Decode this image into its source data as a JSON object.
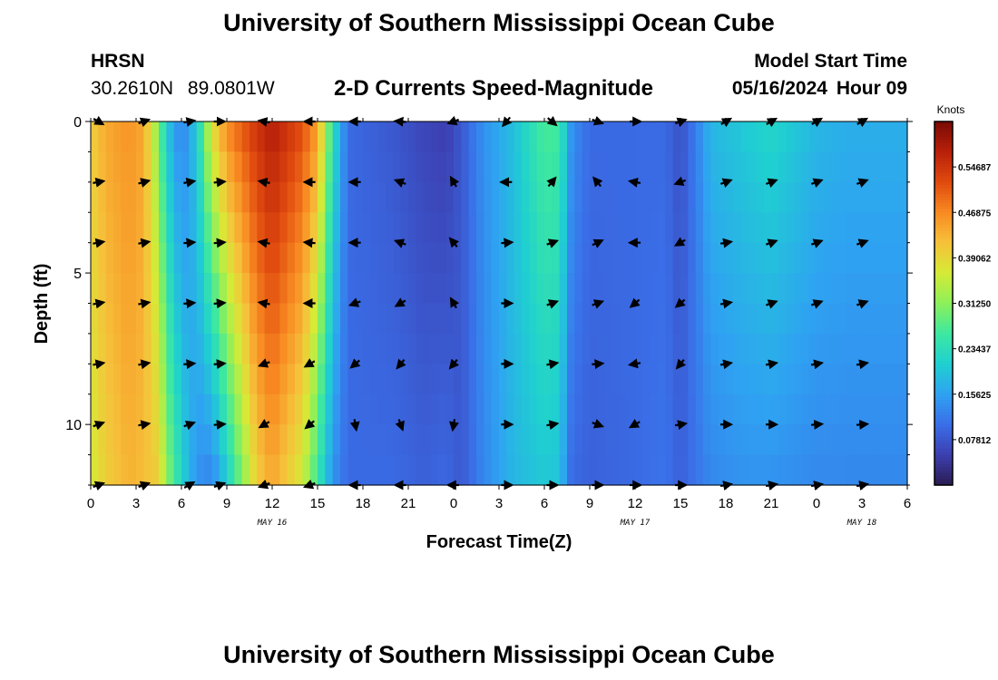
{
  "header": {
    "title": "University of Southern Mississippi Ocean Cube",
    "station": "HRSN",
    "lat": "30.2610N",
    "lon": "89.0801W",
    "subtitle": "2-D Currents Speed-Magnitude",
    "model_start_label": "Model Start Time",
    "model_start_date": "05/16/2024",
    "model_start_hour": "Hour 09"
  },
  "footer": {
    "title": "University of Southern Mississippi Ocean Cube"
  },
  "chart_data": {
    "type": "heatmap",
    "title": "2-D Currents Speed-Magnitude",
    "xlabel": "Forecast Time(Z)",
    "ylabel": "Depth (ft)",
    "xlim": [
      0,
      54
    ],
    "ylim": [
      0,
      12
    ],
    "x_tick_labels": [
      "0",
      "3",
      "6",
      "9",
      "12",
      "15",
      "18",
      "21",
      "0",
      "3",
      "6",
      "9",
      "12",
      "15",
      "18",
      "21",
      "0",
      "3",
      "6"
    ],
    "y_ticks": [
      0,
      5,
      10
    ],
    "day_labels": [
      {
        "label": "MAY 16",
        "hour": 12
      },
      {
        "label": "MAY 17",
        "hour": 36
      },
      {
        "label": "MAY 18",
        "hour": 51
      }
    ],
    "colorbar": {
      "label": "Knots",
      "min": 0.0,
      "max": 0.625,
      "ticks": [
        0.07812,
        0.15625,
        0.23437,
        0.3125,
        0.39062,
        0.46875,
        0.54687
      ],
      "tick_labels": [
        "0.07812",
        "0.15625",
        "0.23437",
        "0.31250",
        "0.39062",
        "0.46875",
        "0.54687"
      ],
      "colors": [
        "#2b1c52",
        "#3c3fb0",
        "#3a6ee8",
        "#2fa2f2",
        "#1fd0d0",
        "#3de8a0",
        "#8df05a",
        "#d6ea36",
        "#f6c13a",
        "#f88a22",
        "#e04a0e",
        "#b8200a",
        "#780a04"
      ]
    },
    "depths": [
      0,
      1,
      2,
      3,
      4,
      5,
      6,
      7,
      8,
      9,
      10,
      11,
      12
    ],
    "speed_profile": [
      {
        "hour": 0,
        "surface": 0.4,
        "bottom": 0.36
      },
      {
        "hour": 1,
        "surface": 0.44,
        "bottom": 0.4
      },
      {
        "hour": 2.5,
        "surface": 0.46,
        "bottom": 0.43
      },
      {
        "hour": 3.5,
        "surface": 0.44,
        "bottom": 0.42
      },
      {
        "hour": 4.5,
        "surface": 0.3,
        "bottom": 0.4
      },
      {
        "hour": 5,
        "surface": 0.2,
        "bottom": 0.32
      },
      {
        "hour": 6,
        "surface": 0.12,
        "bottom": 0.22
      },
      {
        "hour": 7,
        "surface": 0.2,
        "bottom": 0.14
      },
      {
        "hour": 8,
        "surface": 0.38,
        "bottom": 0.12
      },
      {
        "hour": 9,
        "surface": 0.47,
        "bottom": 0.2
      },
      {
        "hour": 11,
        "surface": 0.55,
        "bottom": 0.4
      },
      {
        "hour": 12,
        "surface": 0.58,
        "bottom": 0.44
      },
      {
        "hour": 14,
        "surface": 0.52,
        "bottom": 0.36
      },
      {
        "hour": 15,
        "surface": 0.45,
        "bottom": 0.25
      },
      {
        "hour": 16,
        "surface": 0.24,
        "bottom": 0.14
      },
      {
        "hour": 17,
        "surface": 0.1,
        "bottom": 0.1
      },
      {
        "hour": 20,
        "surface": 0.08,
        "bottom": 0.1
      },
      {
        "hour": 22,
        "surface": 0.06,
        "bottom": 0.09
      },
      {
        "hour": 23.5,
        "surface": 0.05,
        "bottom": 0.1
      },
      {
        "hour": 24.5,
        "surface": 0.08,
        "bottom": 0.08
      },
      {
        "hour": 26,
        "surface": 0.14,
        "bottom": 0.13
      },
      {
        "hour": 28,
        "surface": 0.19,
        "bottom": 0.18
      },
      {
        "hour": 30,
        "surface": 0.27,
        "bottom": 0.2
      },
      {
        "hour": 31,
        "surface": 0.26,
        "bottom": 0.19
      },
      {
        "hour": 31.8,
        "surface": 0.14,
        "bottom": 0.1
      },
      {
        "hour": 33,
        "surface": 0.1,
        "bottom": 0.09
      },
      {
        "hour": 36,
        "surface": 0.1,
        "bottom": 0.1
      },
      {
        "hour": 38,
        "surface": 0.1,
        "bottom": 0.11
      },
      {
        "hour": 39,
        "surface": 0.07,
        "bottom": 0.09
      },
      {
        "hour": 40,
        "surface": 0.12,
        "bottom": 0.11
      },
      {
        "hour": 41,
        "surface": 0.18,
        "bottom": 0.13
      },
      {
        "hour": 43,
        "surface": 0.2,
        "bottom": 0.14
      },
      {
        "hour": 45,
        "surface": 0.22,
        "bottom": 0.14
      },
      {
        "hour": 48,
        "surface": 0.18,
        "bottom": 0.13
      },
      {
        "hour": 50,
        "surface": 0.17,
        "bottom": 0.13
      },
      {
        "hour": 54,
        "surface": 0.17,
        "bottom": 0.13
      }
    ],
    "vector_times": [
      0.5,
      3.5,
      6.5,
      8.5,
      11.5,
      14.5,
      17.5,
      20.5,
      24,
      27.5,
      30.5,
      33.5,
      36,
      39,
      42,
      45,
      48,
      51
    ],
    "vector_depths": [
      0,
      2,
      4,
      6,
      8,
      10,
      12
    ],
    "vector_directions_deg": [
      [
        -30,
        20,
        10,
        0,
        170,
        180,
        180,
        175,
        200,
        230,
        320,
        340,
        0,
        20,
        30,
        30,
        30,
        30
      ],
      [
        10,
        15,
        10,
        5,
        170,
        180,
        180,
        160,
        120,
        180,
        50,
        130,
        170,
        200,
        20,
        20,
        20,
        20
      ],
      [
        10,
        10,
        5,
        5,
        170,
        175,
        180,
        160,
        130,
        5,
        20,
        25,
        180,
        210,
        10,
        20,
        20,
        20
      ],
      [
        10,
        10,
        5,
        5,
        170,
        180,
        200,
        210,
        120,
        0,
        20,
        20,
        220,
        220,
        10,
        20,
        20,
        20
      ],
      [
        10,
        10,
        5,
        5,
        200,
        210,
        220,
        230,
        230,
        0,
        10,
        5,
        190,
        230,
        10,
        10,
        10,
        10
      ],
      [
        20,
        10,
        20,
        5,
        210,
        220,
        280,
        290,
        260,
        0,
        10,
        -20,
        210,
        10,
        0,
        0,
        5,
        5
      ],
      [
        20,
        20,
        30,
        20,
        200,
        200,
        180,
        180,
        180,
        0,
        0,
        0,
        0,
        0,
        10,
        10,
        10,
        10
      ]
    ]
  }
}
